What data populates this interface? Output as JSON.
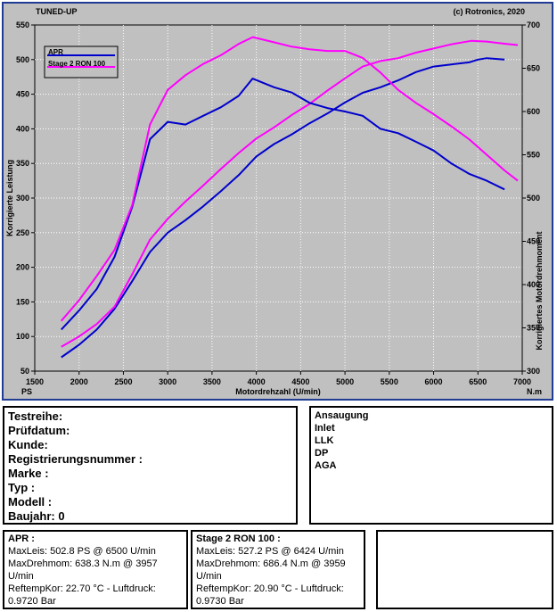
{
  "chart_data": {
    "type": "line",
    "title_left": "TUNED-UP",
    "title_right": "(c) Rotronics, 2020",
    "xlabel": "Motordrehzahl (U/min)",
    "x_unit_left": "PS",
    "x_unit_right": "N.m",
    "ylabel_left": "Korrigierte Leistung",
    "ylabel_right": "Korrigiertes Motordrehmoment",
    "xlim": [
      1500,
      7000
    ],
    "ylim_left": [
      50,
      550
    ],
    "ylim_right": [
      300,
      700
    ],
    "x_ticks": [
      "1500",
      "2000",
      "2500",
      "3000",
      "3500",
      "4000",
      "4500",
      "5000",
      "5500",
      "6000",
      "6500",
      "7000"
    ],
    "y_left_ticks": [
      "550",
      "500",
      "450",
      "400",
      "350",
      "300",
      "250",
      "200",
      "150",
      "100",
      "50"
    ],
    "y_right_ticks": [
      "700",
      "650",
      "600",
      "550",
      "500",
      "450",
      "400",
      "350",
      "300"
    ],
    "grid": true,
    "legend_position": "top-left",
    "series": [
      {
        "name": "APR",
        "kind": "power",
        "axis": "left",
        "color": "#0000cc",
        "x": [
          1800,
          2000,
          2200,
          2400,
          2600,
          2800,
          3000,
          3200,
          3400,
          3600,
          3800,
          4000,
          4200,
          4400,
          4600,
          4800,
          5000,
          5200,
          5400,
          5600,
          5800,
          6000,
          6200,
          6400,
          6500,
          6600,
          6800
        ],
        "y": [
          70,
          88,
          110,
          140,
          180,
          222,
          250,
          268,
          288,
          310,
          333,
          360,
          378,
          392,
          408,
          422,
          438,
          452,
          460,
          470,
          482,
          490,
          493,
          496,
          500,
          502,
          500
        ]
      },
      {
        "name": "Stage 2 RON 100",
        "kind": "power",
        "axis": "left",
        "color": "#ff00ff",
        "x": [
          1800,
          2000,
          2200,
          2400,
          2600,
          2800,
          3000,
          3200,
          3400,
          3600,
          3800,
          4000,
          4200,
          4400,
          4600,
          4800,
          5000,
          5200,
          5400,
          5600,
          5800,
          6000,
          6200,
          6424,
          6600,
          6800,
          6950
        ],
        "y": [
          85,
          100,
          118,
          143,
          190,
          240,
          270,
          295,
          318,
          342,
          365,
          386,
          402,
          420,
          436,
          455,
          473,
          490,
          498,
          502,
          510,
          516,
          522,
          527,
          526,
          523,
          521
        ]
      },
      {
        "name": "APR",
        "kind": "torque",
        "axis": "right",
        "color": "#0000cc",
        "x": [
          1800,
          2000,
          2200,
          2400,
          2600,
          2800,
          3000,
          3200,
          3400,
          3600,
          3800,
          3957,
          4200,
          4400,
          4600,
          4800,
          5000,
          5200,
          5400,
          5600,
          5800,
          6000,
          6200,
          6400,
          6600,
          6800
        ],
        "y": [
          348,
          370,
          395,
          432,
          490,
          568,
          588,
          585,
          595,
          605,
          618,
          638,
          628,
          622,
          610,
          604,
          600,
          595,
          580,
          575,
          565,
          555,
          540,
          528,
          520,
          510
        ]
      },
      {
        "name": "Stage 2 RON 100",
        "kind": "torque",
        "axis": "right",
        "color": "#ff00ff",
        "x": [
          1800,
          2000,
          2200,
          2400,
          2600,
          2800,
          3000,
          3200,
          3400,
          3600,
          3800,
          3959,
          4200,
          4400,
          4600,
          4800,
          5000,
          5200,
          5400,
          5600,
          5800,
          6000,
          6200,
          6400,
          6600,
          6800,
          6950
        ],
        "y": [
          358,
          382,
          410,
          440,
          492,
          585,
          625,
          642,
          655,
          665,
          678,
          686,
          680,
          675,
          672,
          670,
          670,
          662,
          645,
          625,
          610,
          597,
          583,
          568,
          550,
          532,
          520
        ]
      }
    ]
  },
  "info": {
    "testreihe": "Testreihe:",
    "pruefdatum": "Prüfdatum:",
    "kunde": "Kunde:",
    "registrierung": "Registrierungsnummer  :",
    "marke": "Marke  :",
    "typ": "Typ  :",
    "modell": "Modell  :",
    "baujahr": "Baujahr: 0"
  },
  "ansaugung": {
    "title": "Ansaugung",
    "items": [
      "Inlet",
      "LLK",
      "DP",
      "AGA"
    ]
  },
  "results": {
    "apr": {
      "title": "APR :",
      "line1": "MaxLeis: 502.8 PS @ 6500 U/min",
      "line2": "MaxDrehmom: 638.3 N.m @ 3957",
      "line3": "U/min",
      "line4": "ReftempKor: 22.70 °C - Luftdruck:",
      "line5": "0.9720 Bar"
    },
    "stage2": {
      "title": "Stage 2 RON 100 :",
      "line1": "MaxLeis: 527.2 PS @ 6424 U/min",
      "line2": "MaxDrehmom: 686.4 N.m @ 3959",
      "line3": "U/min",
      "line4": "ReftempKor: 20.90 °C - Luftdruck:",
      "line5": "0.9730 Bar"
    }
  }
}
